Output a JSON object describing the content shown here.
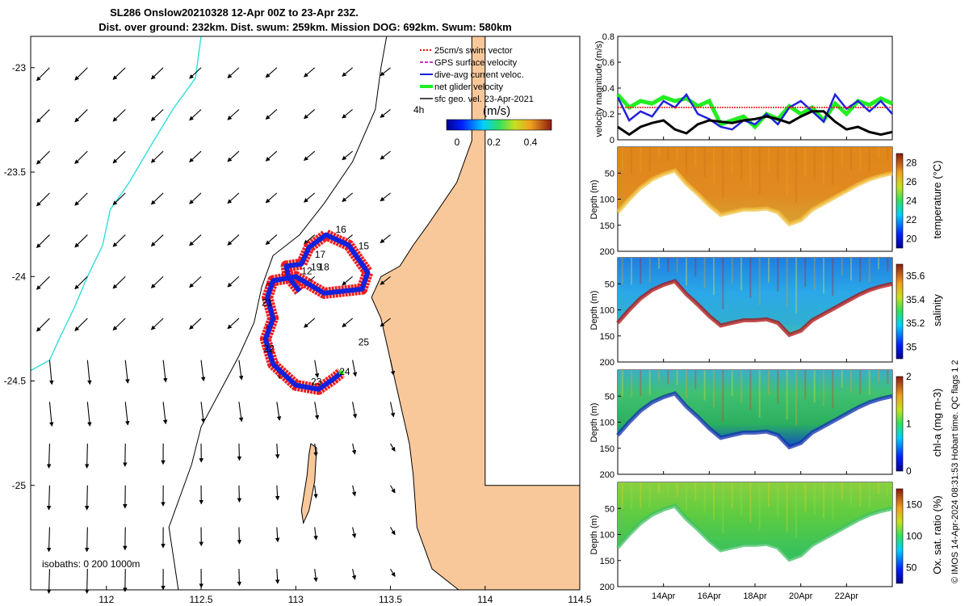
{
  "figure": {
    "title_line1": "SL286 Onslow20210328 12-Apr 00Z to 23-Apr 23Z.",
    "title_line2": "Dist. over ground: 232km. Dist. swum: 259km. Mission DOG: 692km. Swum: 580km",
    "credit": "© IMOS 14-Apr-2024 08:31:53 Hobart time. QC flags 1  2",
    "map_isobath_note": "isobaths: 0   200   1000m",
    "colorbar_unit": "(m/s)",
    "time_label": "4h",
    "colors": {
      "land": "#f9c89a",
      "track_red": "#ee1111",
      "track_blue": "#1122dd",
      "isobath_cyan": "#33dddd",
      "speed_green": "#22ee22",
      "speed_blue": "#2222dd"
    }
  },
  "chart_data": [
    {
      "id": "map",
      "type": "scatter",
      "title": "SL286 Onslow20210328 12-Apr 00Z to 23-Apr 23Z.",
      "xlim": [
        111.6,
        114.5
      ],
      "ylim": [
        -25.5,
        -22.85
      ],
      "x_ticks": [
        "112",
        "112.5",
        "113",
        "113.5",
        "114",
        "114.5"
      ],
      "y_ticks": [
        "-23",
        "-23.5",
        "-24",
        "-24.5",
        "-25"
      ],
      "legend": [
        {
          "label": "25cm/s swim vector",
          "color": "#ee1111",
          "style": "dotted"
        },
        {
          "label": "GPS surface velocity",
          "color": "#cc33cc",
          "style": "dash"
        },
        {
          "label": "dive-avg current veloc.",
          "color": "#1122dd",
          "style": "solid"
        },
        {
          "label": "net glider velocity",
          "color": "#22ee22",
          "style": "thick"
        },
        {
          "label": "sfc geo. vel. 23-Apr-2021",
          "color": "#000000",
          "style": "arrow"
        }
      ],
      "legend_placement": "top-right",
      "colorbar_ticks": [
        "0",
        "0.2",
        "0.4"
      ],
      "day_labels": [
        {
          "text": "15",
          "lon": 113.33,
          "lat": -23.87
        },
        {
          "text": "16",
          "lon": 113.21,
          "lat": -23.79
        },
        {
          "text": "17",
          "lon": 113.1,
          "lat": -23.91
        },
        {
          "text": "18",
          "lon": 113.12,
          "lat": -23.97
        },
        {
          "text": "19",
          "lon": 113.08,
          "lat": -23.97
        },
        {
          "text": "12",
          "lon": 113.03,
          "lat": -23.99
        },
        {
          "text": "21",
          "lon": 112.82,
          "lat": -24.14
        },
        {
          "text": "22",
          "lon": 112.83,
          "lat": -24.36
        },
        {
          "text": "23",
          "lon": 113.08,
          "lat": -24.52
        },
        {
          "text": "24",
          "lon": 113.23,
          "lat": -24.47
        },
        {
          "text": "25",
          "lon": 113.33,
          "lat": -24.33
        }
      ],
      "track": [
        [
          113.02,
          -24.07
        ],
        [
          112.96,
          -24.0
        ],
        [
          112.95,
          -23.95
        ],
        [
          113.03,
          -23.94
        ],
        [
          113.07,
          -23.86
        ],
        [
          113.16,
          -23.8
        ],
        [
          113.28,
          -23.85
        ],
        [
          113.38,
          -23.98
        ],
        [
          113.35,
          -24.06
        ],
        [
          113.15,
          -24.08
        ],
        [
          113.0,
          -24.0
        ],
        [
          112.88,
          -24.02
        ],
        [
          112.85,
          -24.1
        ],
        [
          112.88,
          -24.2
        ],
        [
          112.84,
          -24.3
        ],
        [
          112.88,
          -24.42
        ],
        [
          113.0,
          -24.52
        ],
        [
          113.12,
          -24.54
        ],
        [
          113.2,
          -24.49
        ],
        [
          113.24,
          -24.46
        ]
      ]
    },
    {
      "id": "speed",
      "type": "line",
      "ylabel": "velocity magnitude (m/s)",
      "ylim": [
        0,
        0.8
      ],
      "y_ticks": [
        "0",
        "0.2",
        "0.4",
        "0.6",
        "0.8"
      ],
      "x": [
        12,
        12.5,
        13,
        13.5,
        14,
        14.5,
        15,
        15.5,
        16,
        16.5,
        17,
        17.5,
        18,
        18.5,
        19,
        19.5,
        20,
        20.5,
        21,
        21.5,
        22,
        22.5,
        23,
        23.5,
        24
      ],
      "series": [
        {
          "color": "#22ee22",
          "values": [
            0.35,
            0.25,
            0.3,
            0.28,
            0.33,
            0.3,
            0.32,
            0.26,
            0.3,
            0.12,
            0.15,
            0.18,
            0.1,
            0.2,
            0.16,
            0.26,
            0.2,
            0.25,
            0.15,
            0.28,
            0.2,
            0.3,
            0.27,
            0.32,
            0.28
          ]
        },
        {
          "color": "#2222dd",
          "values": [
            0.33,
            0.15,
            0.22,
            0.18,
            0.3,
            0.25,
            0.35,
            0.2,
            0.16,
            0.1,
            0.08,
            0.15,
            0.12,
            0.2,
            0.12,
            0.25,
            0.3,
            0.22,
            0.14,
            0.35,
            0.24,
            0.3,
            0.22,
            0.3,
            0.2
          ]
        },
        {
          "color": "#000000",
          "values": [
            0.1,
            0.04,
            0.1,
            0.13,
            0.15,
            0.08,
            0.05,
            0.12,
            0.15,
            0.14,
            0.13,
            0.15,
            0.16,
            0.18,
            0.16,
            0.13,
            0.18,
            0.22,
            0.22,
            0.14,
            0.08,
            0.1,
            0.06,
            0.04,
            0.06
          ]
        },
        {
          "color": "#ee1111",
          "values": [
            0.25,
            0.25,
            0.25,
            0.25,
            0.25,
            0.25,
            0.25,
            0.25,
            0.25,
            0.25,
            0.25,
            0.25,
            0.25,
            0.25,
            0.25,
            0.25,
            0.25,
            0.25,
            0.25,
            0.25,
            0.25,
            0.25,
            0.25,
            0.25,
            0.25
          ]
        }
      ]
    },
    {
      "id": "temperature",
      "type": "heatmap",
      "ylabel": "Depth (m)",
      "cbar_label": "temperature (°C)",
      "ylim": [
        200,
        0
      ],
      "y_ticks": [
        "50",
        "100",
        "150",
        "200"
      ],
      "clim": [
        19,
        29
      ],
      "cbar_ticks": [
        "20",
        "22",
        "24",
        "26",
        "28"
      ]
    },
    {
      "id": "salinity",
      "type": "heatmap",
      "ylabel": "Depth (m)",
      "cbar_label": "salinity",
      "ylim": [
        200,
        0
      ],
      "y_ticks": [
        "50",
        "100",
        "150",
        "200"
      ],
      "clim": [
        34.9,
        35.7
      ],
      "cbar_ticks": [
        "35",
        "35.2",
        "35.4",
        "35.6"
      ]
    },
    {
      "id": "chla",
      "type": "heatmap",
      "ylabel": "Depth (m)",
      "cbar_label": "chl-a (mg m-3)",
      "ylim": [
        200,
        0
      ],
      "y_ticks": [
        "50",
        "100",
        "150",
        "200"
      ],
      "clim": [
        0,
        2
      ],
      "cbar_ticks": [
        "0",
        "1",
        "2"
      ]
    },
    {
      "id": "oxygen",
      "type": "heatmap",
      "ylabel": "Depth (m)",
      "cbar_label": "Ox. sat. ratio (%)",
      "ylim": [
        200,
        0
      ],
      "y_ticks": [
        "50",
        "100",
        "150",
        "200"
      ],
      "clim": [
        25,
        175
      ],
      "cbar_ticks": [
        "50",
        "100",
        "150"
      ],
      "x_ticks": [
        "14Apr",
        "16Apr",
        "18Apr",
        "20Apr",
        "22Apr"
      ]
    }
  ],
  "section_bottom_depths": {
    "x": [
      12,
      12.5,
      13,
      13.5,
      14,
      14.5,
      15,
      15.5,
      16,
      16.5,
      17,
      17.5,
      18,
      18.5,
      19,
      19.5,
      20,
      20.5,
      21,
      21.5,
      22,
      22.5,
      23,
      23.5,
      24
    ],
    "depth": [
      125,
      100,
      78,
      62,
      52,
      45,
      70,
      90,
      112,
      130,
      125,
      120,
      120,
      118,
      125,
      148,
      140,
      120,
      108,
      96,
      84,
      72,
      62,
      55,
      50
    ]
  }
}
